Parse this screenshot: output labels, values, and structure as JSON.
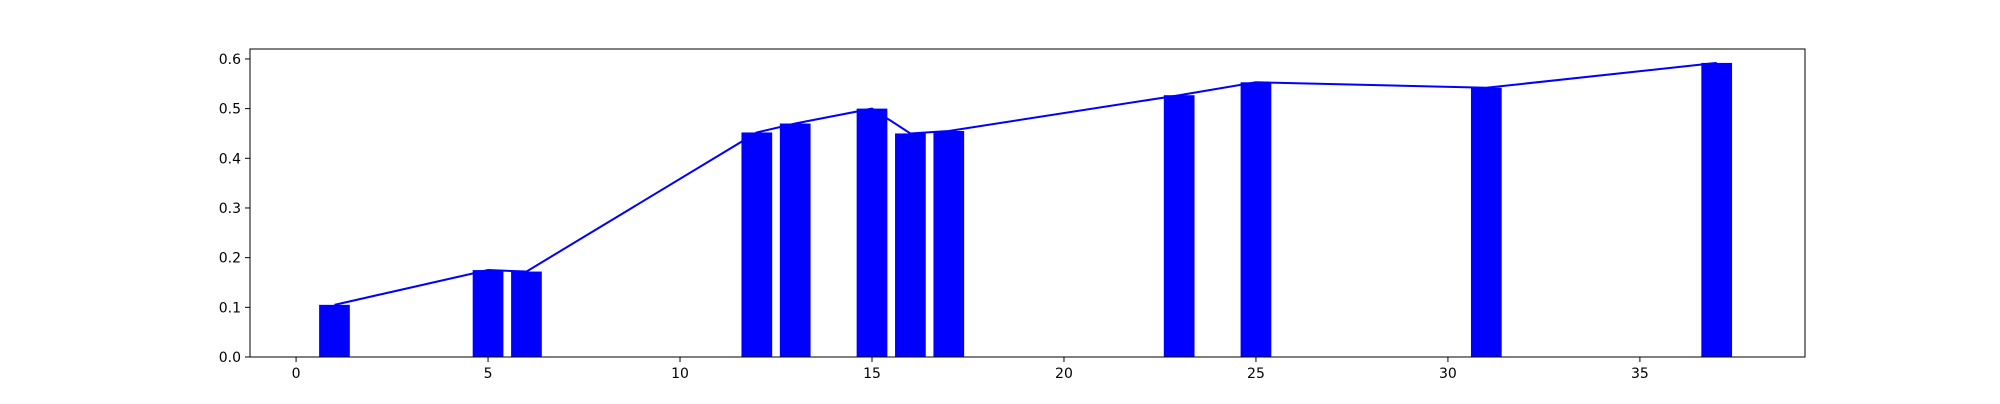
{
  "chart_data": {
    "type": "bar",
    "title": "",
    "xlabel": "",
    "ylabel": "",
    "xlim": [
      -1.2,
      39.3
    ],
    "ylim": [
      0,
      0.62
    ],
    "xticks": [
      0,
      5,
      10,
      15,
      20,
      25,
      30,
      35
    ],
    "xtick_labels": [
      "0",
      "5",
      "10",
      "15",
      "20",
      "25",
      "30",
      "35"
    ],
    "yticks": [
      0.0,
      0.1,
      0.2,
      0.3,
      0.4,
      0.5,
      0.6
    ],
    "ytick_labels": [
      "0.0",
      "0.1",
      "0.2",
      "0.3",
      "0.4",
      "0.5",
      "0.6"
    ],
    "grid": false,
    "bar_color": "#0000ff",
    "line_color": "#0000ff",
    "bar_width": 0.8,
    "x": [
      1,
      5,
      6,
      12,
      13,
      15,
      16,
      17,
      23,
      25,
      31,
      37
    ],
    "values": [
      0.105,
      0.175,
      0.172,
      0.452,
      0.47,
      0.5,
      0.45,
      0.455,
      0.527,
      0.553,
      0.542,
      0.592
    ],
    "line": {
      "x": [
        1,
        5,
        6,
        12,
        13,
        15,
        16,
        17,
        23,
        25,
        31,
        37
      ],
      "y": [
        0.105,
        0.175,
        0.172,
        0.452,
        0.47,
        0.5,
        0.45,
        0.455,
        0.527,
        0.553,
        0.542,
        0.592
      ]
    }
  }
}
